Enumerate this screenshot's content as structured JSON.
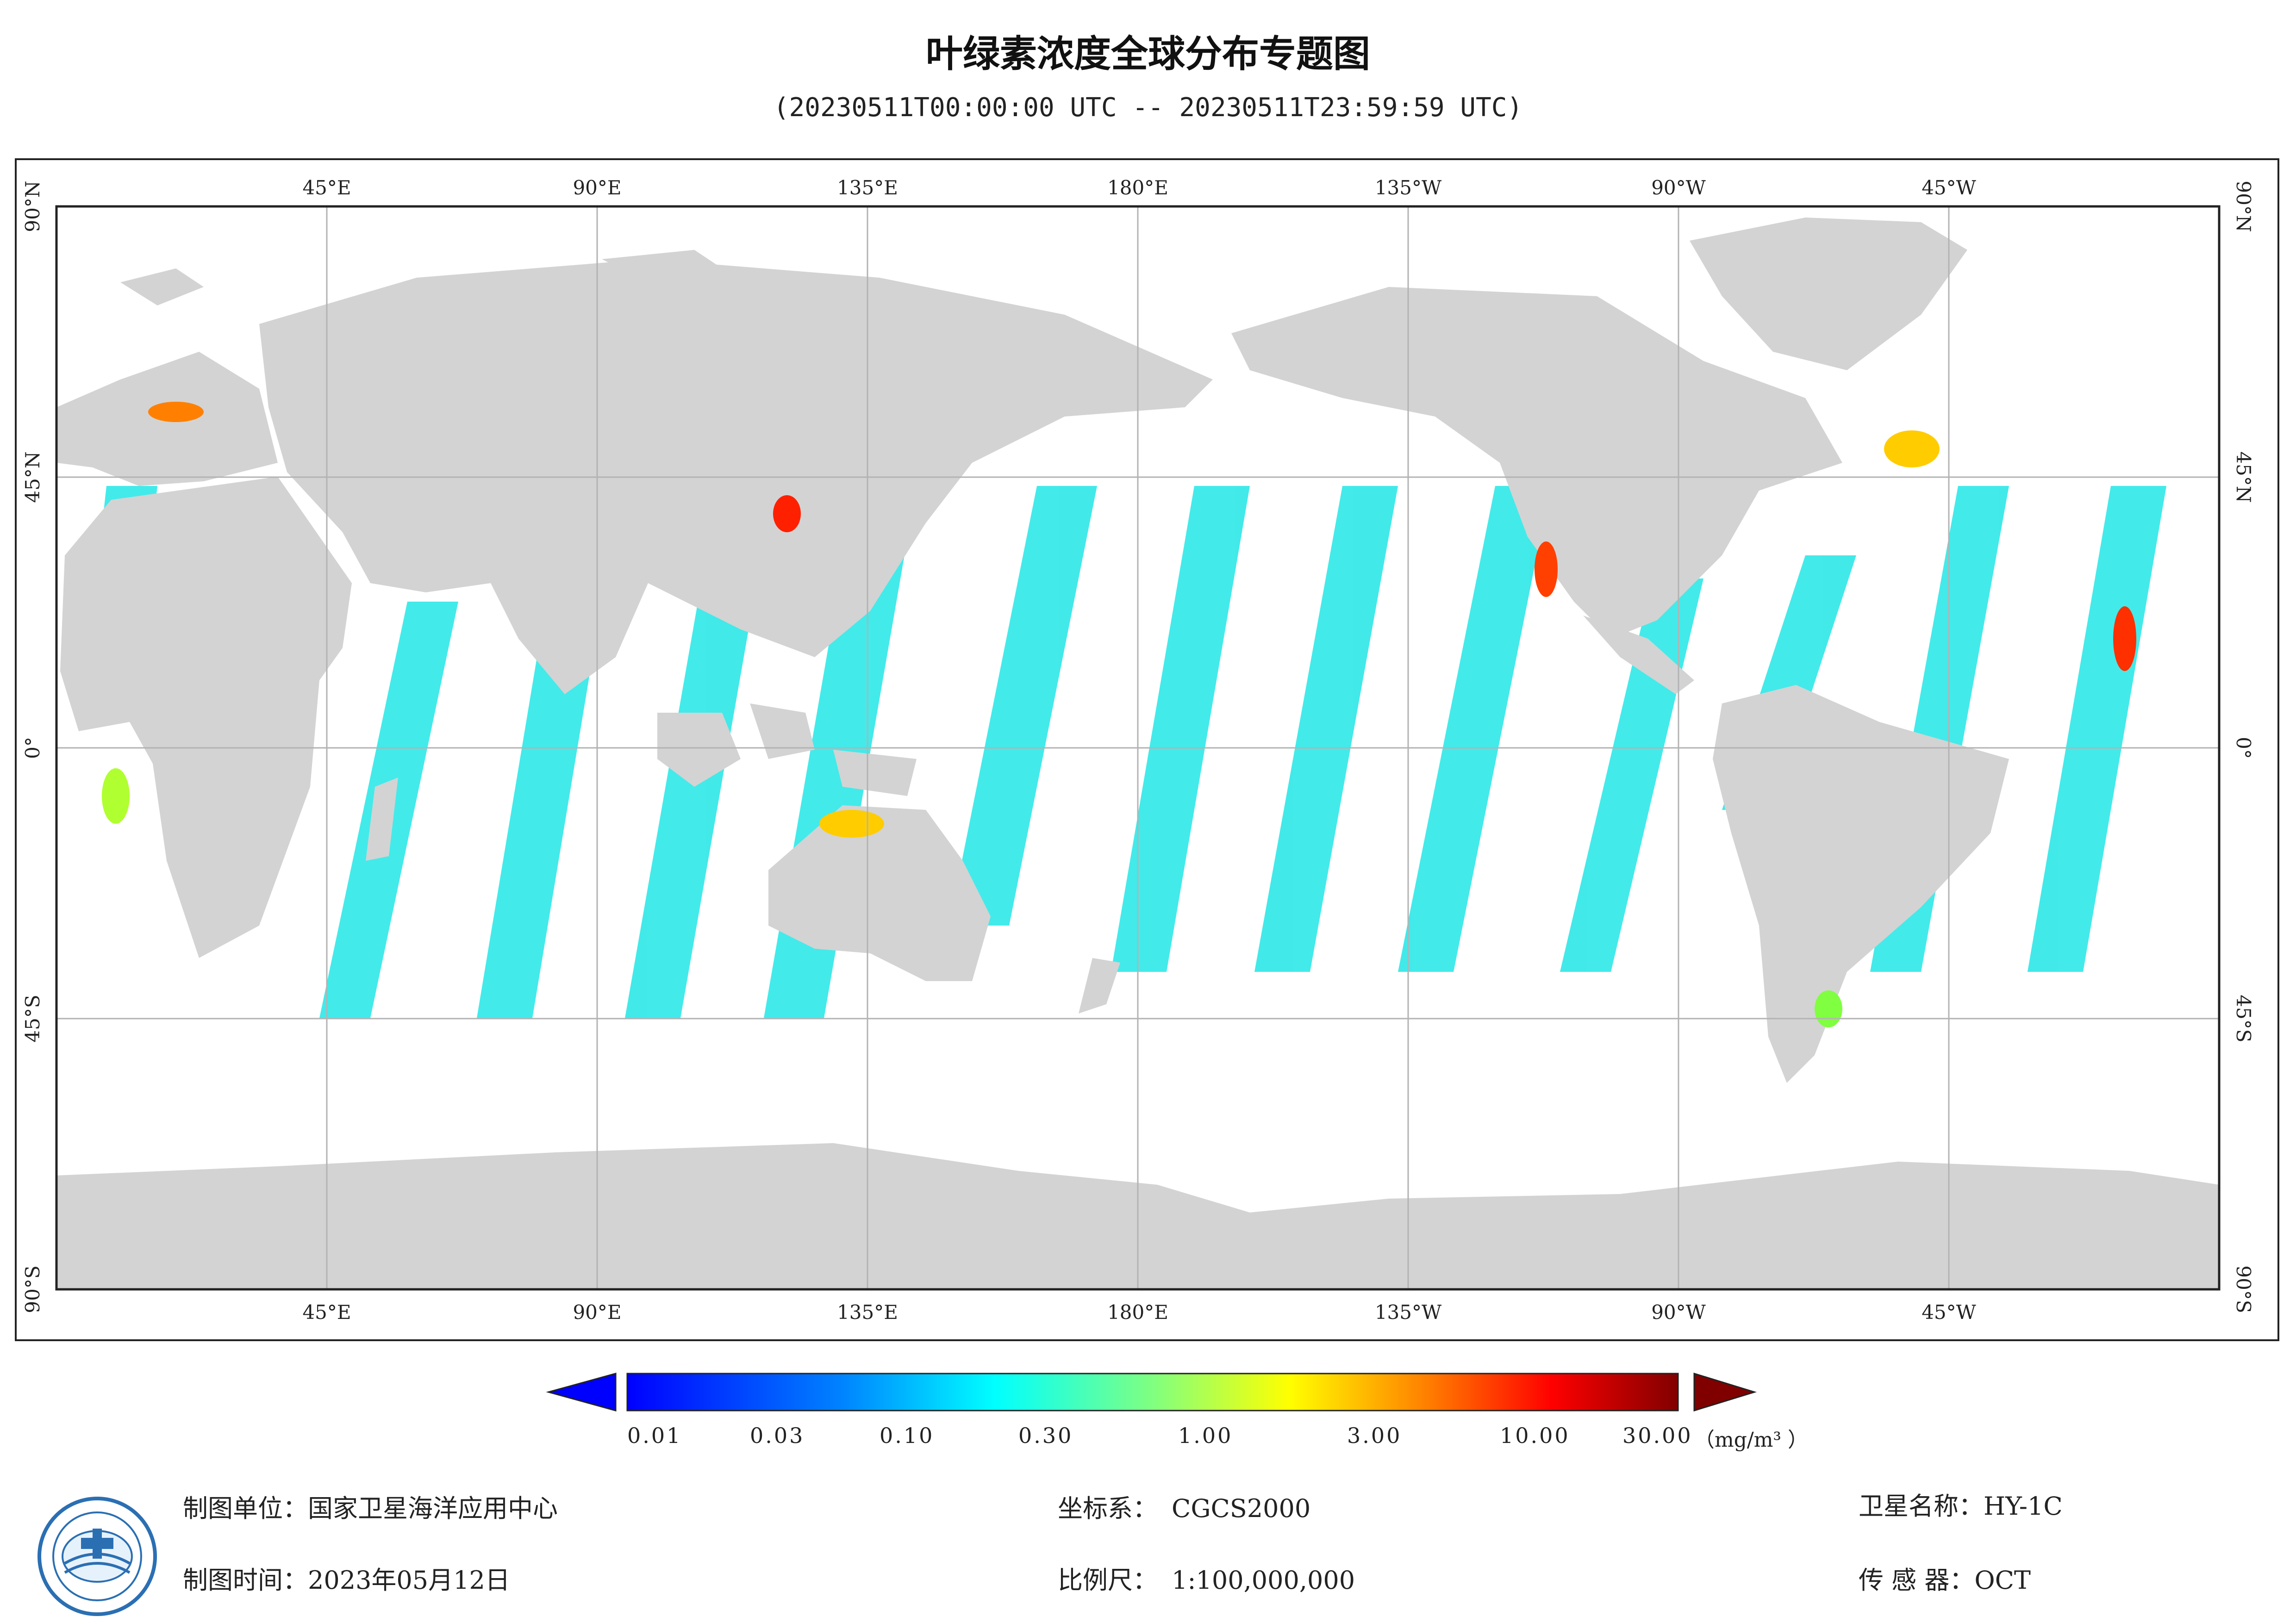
{
  "title": "叶绿素浓度全球分布专题图",
  "subtitle": "(20230511T00:00:00 UTC -- 20230511T23:59:59 UTC)",
  "map": {
    "lon_labels": [
      "45°E",
      "90°E",
      "135°E",
      "180°E",
      "135°W",
      "90°W",
      "45°W"
    ],
    "lat_labels": [
      "90°N",
      "45°N",
      "0°",
      "45°S",
      "90°S"
    ],
    "land_color": "#d3d3d3",
    "ocean_color": "#ffffff",
    "grid_color": "#b3b3b3"
  },
  "legend": {
    "ticks": [
      "0.01",
      "0.03",
      "0.10",
      "0.30",
      "1.00",
      "3.00",
      "10.00",
      "30.00"
    ],
    "units": "（mg/m³ ）",
    "colors": [
      "#0000ff",
      "#0080ff",
      "#00ffff",
      "#80ff80",
      "#ffff00",
      "#ff8000",
      "#ff0000",
      "#800000"
    ]
  },
  "footer": {
    "unit_label": "制图单位：",
    "unit_value": "国家卫星海洋应用中心",
    "time_label": "制图时间：",
    "time_value": "2023年05月12日",
    "crs_label": "坐标系：",
    "crs_value": "CGCS2000",
    "scale_label": "比例尺：",
    "scale_value": "1:100,000,000",
    "satellite_label": "卫星名称：",
    "satellite_value": "HY-1C",
    "sensor_label": "传 感 器：",
    "sensor_value": "OCT"
  }
}
